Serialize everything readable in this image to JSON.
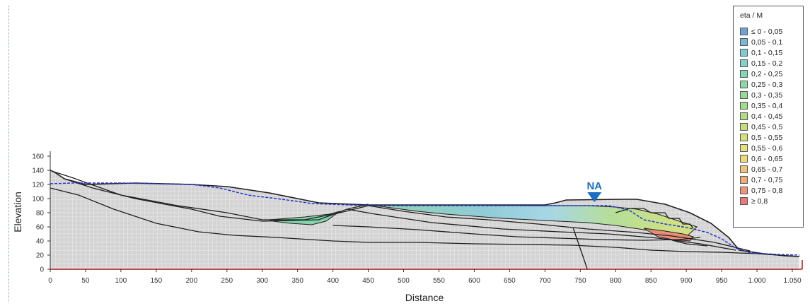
{
  "axes": {
    "xlabel": "Distance",
    "ylabel": "Elevation",
    "xticks": [
      "0",
      "50",
      "100",
      "150",
      "200",
      "250",
      "300",
      "350",
      "400",
      "450",
      "500",
      "550",
      "600",
      "650",
      "700",
      "750",
      "800",
      "850",
      "900",
      "950",
      "1.000",
      "1.050"
    ],
    "yticks": [
      "0",
      "20",
      "40",
      "60",
      "80",
      "100",
      "120",
      "140",
      "160"
    ],
    "xlim": [
      0,
      1060
    ],
    "ylim": [
      0,
      160
    ]
  },
  "marker": {
    "label": "NA",
    "x": 770,
    "y": 95,
    "color": "#1a6fc4"
  },
  "legend": {
    "title": "eta / M",
    "items": [
      {
        "label": "≤ 0 - 0,05",
        "color": "#6fa3d8"
      },
      {
        "label": "0,05 - 0,1",
        "color": "#74b8dc"
      },
      {
        "label": "0,1 - 0,15",
        "color": "#7ccbd6"
      },
      {
        "label": "0,15 - 0,2",
        "color": "#80d3c8"
      },
      {
        "label": "0,2 - 0,25",
        "color": "#84d6b8"
      },
      {
        "label": "0,25 - 0,3",
        "color": "#8ad9a6"
      },
      {
        "label": "0,3 - 0,35",
        "color": "#93db96"
      },
      {
        "label": "0,35 - 0,4",
        "color": "#9fdd88"
      },
      {
        "label": "0,4 - 0,45",
        "color": "#aede80"
      },
      {
        "label": "0,45 - 0,5",
        "color": "#c0e07a"
      },
      {
        "label": "0,5 - 0,55",
        "color": "#d3e277"
      },
      {
        "label": "0,55 - 0,6",
        "color": "#e5e277"
      },
      {
        "label": "0,6 - 0,65",
        "color": "#f0d878"
      },
      {
        "label": "0,65 - 0,7",
        "color": "#f2c278"
      },
      {
        "label": "0,7 - 0,75",
        "color": "#f2ab78"
      },
      {
        "label": "0,75 - 0,8",
        "color": "#f09478"
      },
      {
        "label": "≥ 0,8",
        "color": "#ec7878"
      }
    ]
  },
  "chart_data": {
    "type": "other",
    "xlabel": "Distance",
    "ylabel": "Elevation",
    "xlim": [
      0,
      1060
    ],
    "ylim": [
      0,
      160
    ],
    "colors": {
      "mesh_fill": "#d6d6d6",
      "mesh_grid": "#ffffff",
      "boundary": "#1e1e1e",
      "water_table": "#2233cc",
      "baseline": "#b01818"
    },
    "ground_surface": [
      [
        0,
        140
      ],
      [
        5,
        138
      ],
      [
        20,
        128
      ],
      [
        50,
        120
      ],
      [
        120,
        122
      ],
      [
        200,
        120
      ],
      [
        250,
        117
      ],
      [
        310,
        108
      ],
      [
        380,
        94
      ],
      [
        450,
        91
      ],
      [
        520,
        91
      ],
      [
        600,
        91
      ],
      [
        700,
        91
      ],
      [
        715,
        94
      ],
      [
        730,
        98
      ],
      [
        810,
        99
      ],
      [
        830,
        99
      ],
      [
        870,
        92
      ],
      [
        905,
        80
      ],
      [
        935,
        65
      ],
      [
        960,
        45
      ],
      [
        975,
        27
      ],
      [
        1010,
        22
      ],
      [
        1040,
        19
      ],
      [
        1060,
        18
      ],
      [
        1060,
        0
      ],
      [
        0,
        0
      ]
    ],
    "water_table": [
      [
        0,
        121
      ],
      [
        30,
        122
      ],
      [
        100,
        122
      ],
      [
        200,
        120
      ],
      [
        240,
        115
      ],
      [
        280,
        105
      ],
      [
        320,
        100
      ],
      [
        350,
        96
      ],
      [
        370,
        93
      ],
      [
        450,
        90
      ],
      [
        520,
        90
      ],
      [
        600,
        90
      ],
      [
        700,
        90
      ],
      [
        750,
        90
      ],
      [
        790,
        90
      ],
      [
        805,
        87
      ],
      [
        820,
        83
      ],
      [
        840,
        70
      ],
      [
        870,
        64
      ],
      [
        895,
        60
      ],
      [
        910,
        57
      ],
      [
        930,
        52
      ],
      [
        950,
        43
      ],
      [
        970,
        30
      ],
      [
        990,
        23
      ],
      [
        1030,
        21
      ],
      [
        1060,
        20
      ]
    ],
    "layer_boundaries": [
      [
        [
          5,
          138
        ],
        [
          30,
          130
        ],
        [
          100,
          105
        ],
        [
          180,
          90
        ],
        [
          250,
          80
        ],
        [
          300,
          70
        ],
        [
          360,
          70
        ],
        [
          410,
          80
        ],
        [
          450,
          90
        ]
      ],
      [
        [
          20,
          128
        ],
        [
          60,
          115
        ],
        [
          120,
          100
        ],
        [
          200,
          85
        ],
        [
          240,
          75
        ],
        [
          300,
          68
        ],
        [
          380,
          70
        ],
        [
          420,
          85
        ],
        [
          450,
          92
        ]
      ],
      [
        [
          0,
          115
        ],
        [
          40,
          105
        ],
        [
          90,
          85
        ],
        [
          150,
          65
        ],
        [
          210,
          53
        ],
        [
          260,
          48
        ],
        [
          320,
          45
        ],
        [
          400,
          40
        ],
        [
          450,
          38
        ],
        [
          520,
          38
        ],
        [
          600,
          36
        ],
        [
          680,
          35
        ],
        [
          740,
          34
        ],
        [
          800,
          31
        ],
        [
          850,
          27
        ],
        [
          900,
          25
        ],
        [
          950,
          24
        ],
        [
          1000,
          22
        ],
        [
          1060,
          18
        ]
      ],
      [
        [
          420,
          85
        ],
        [
          460,
          78
        ],
        [
          540,
          66
        ],
        [
          640,
          57
        ],
        [
          720,
          53
        ],
        [
          790,
          50
        ],
        [
          860,
          44
        ],
        [
          920,
          36
        ],
        [
          970,
          27
        ]
      ],
      [
        [
          450,
          90
        ],
        [
          500,
          82
        ],
        [
          560,
          74
        ],
        [
          620,
          70
        ],
        [
          690,
          64
        ],
        [
          760,
          57
        ],
        [
          830,
          52
        ],
        [
          880,
          47
        ],
        [
          940,
          38
        ],
        [
          990,
          26
        ]
      ],
      [
        [
          400,
          62
        ],
        [
          450,
          60
        ],
        [
          520,
          56
        ],
        [
          600,
          50
        ],
        [
          660,
          46
        ],
        [
          720,
          44
        ],
        [
          780,
          42
        ],
        [
          840,
          41
        ],
        [
          890,
          42
        ],
        [
          920,
          45
        ]
      ],
      [
        [
          740,
          58
        ],
        [
          760,
          0
        ]
      ],
      [
        [
          880,
          41
        ],
        [
          900,
          36
        ],
        [
          930,
          33
        ]
      ]
    ],
    "failure_mass_polygons": [
      {
        "points": [
          [
            310,
            70
          ],
          [
            360,
            74
          ],
          [
            395,
            78
          ],
          [
            410,
            82
          ],
          [
            390,
            68
          ],
          [
            370,
            63
          ],
          [
            340,
            65
          ],
          [
            315,
            68
          ]
        ],
        "color": "#7fd3a8"
      },
      {
        "points": [
          [
            450,
            91
          ],
          [
            520,
            91
          ],
          [
            600,
            91
          ],
          [
            700,
            90
          ],
          [
            760,
            90
          ],
          [
            800,
            88
          ],
          [
            830,
            85
          ],
          [
            860,
            78
          ],
          [
            890,
            68
          ],
          [
            915,
            60
          ],
          [
            900,
            46
          ],
          [
            870,
            50
          ],
          [
            840,
            56
          ],
          [
            800,
            62
          ],
          [
            760,
            66
          ],
          [
            720,
            68
          ],
          [
            680,
            70
          ],
          [
            640,
            72
          ],
          [
            600,
            75
          ],
          [
            560,
            78
          ],
          [
            520,
            82
          ],
          [
            490,
            86
          ],
          [
            460,
            90
          ]
        ],
        "color": "#8fd8b8"
      },
      {
        "points": [
          [
            840,
            58
          ],
          [
            870,
            54
          ],
          [
            895,
            50
          ],
          [
            910,
            46
          ],
          [
            905,
            40
          ],
          [
            880,
            42
          ],
          [
            860,
            46
          ]
        ],
        "color": "#ec8b78"
      }
    ],
    "terrace_steps": [
      [
        800,
        80
      ],
      [
        820,
        86
      ],
      [
        840,
        86
      ],
      [
        850,
        80
      ],
      [
        870,
        80
      ],
      [
        875,
        72
      ],
      [
        890,
        72
      ],
      [
        895,
        64
      ],
      [
        905,
        64
      ],
      [
        910,
        58
      ]
    ]
  }
}
